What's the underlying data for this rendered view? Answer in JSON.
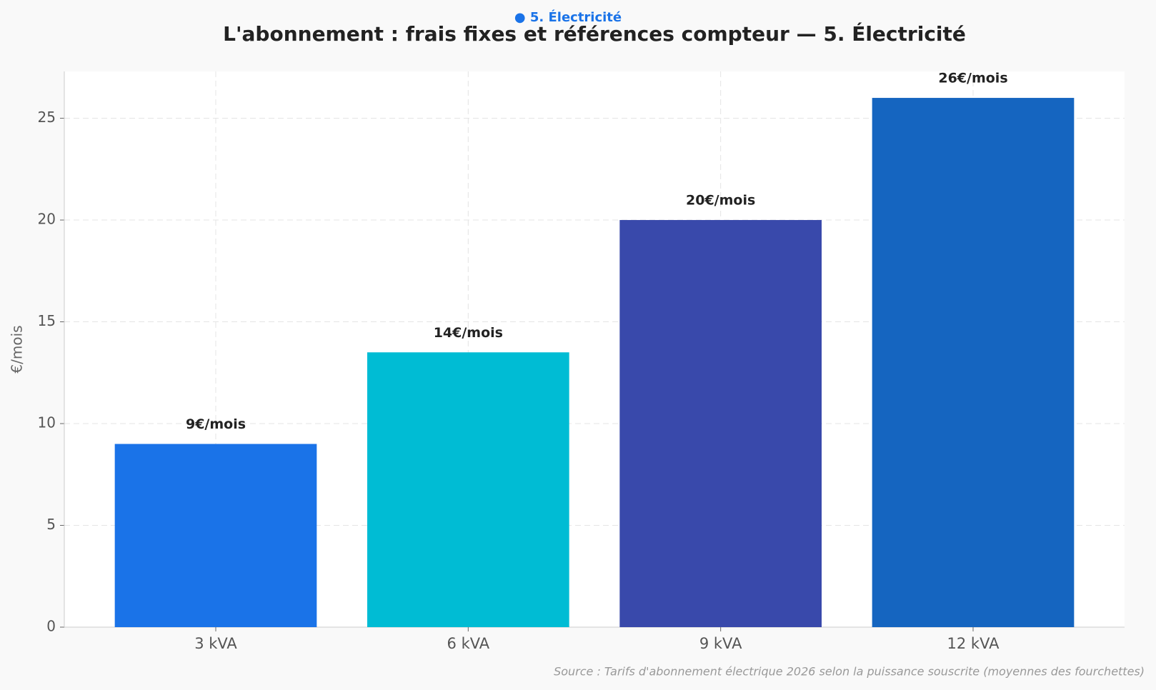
{
  "chart_data": {
    "type": "bar",
    "subtitle": "● 5. Électricité",
    "title": "L'abonnement : frais fixes et références compteur  — 5. Électricité",
    "y_label": "€/mois",
    "categories": [
      "3 kVA",
      "6 kVA",
      "9 kVA",
      "12 kVA"
    ],
    "values": [
      9,
      13.5,
      20,
      26
    ],
    "value_labels": [
      "9€/mois",
      "14€/mois",
      "20€/mois",
      "26€/mois"
    ],
    "colors": [
      "#1a73e8",
      "#00bcd4",
      "#3949ab",
      "#1565c0"
    ],
    "ylim": [
      0,
      27.3
    ],
    "yticks": [
      0,
      5,
      10,
      15,
      20,
      25
    ],
    "grid": true,
    "source": "Source : Tarifs d'abonnement électrique 2026 selon la puissance souscrite (moyennes des fourchettes)"
  }
}
